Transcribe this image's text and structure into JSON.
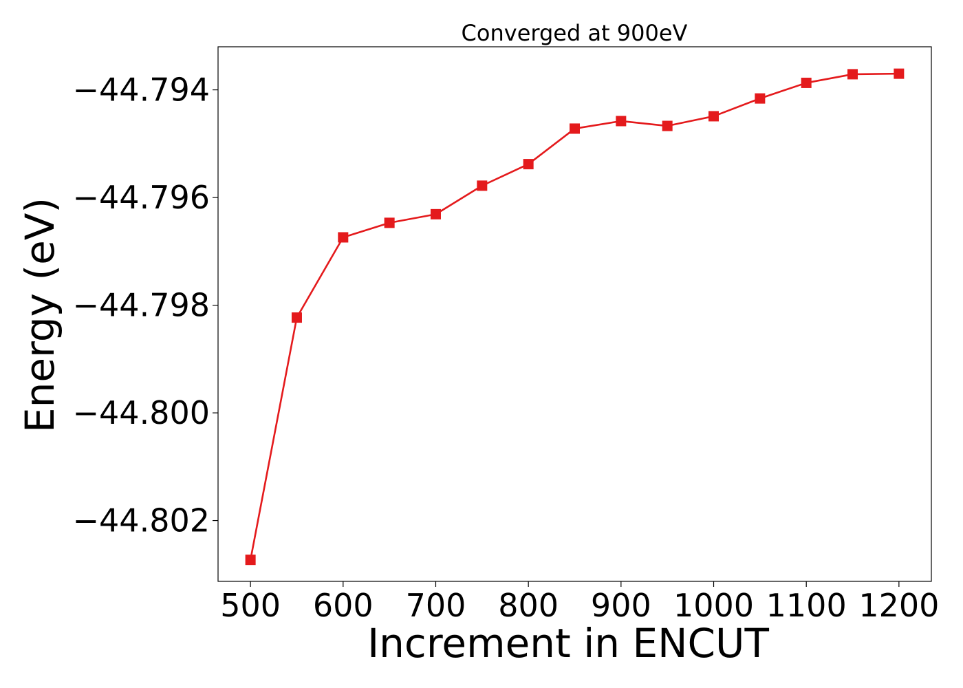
{
  "chart_data": {
    "type": "line",
    "title": "Converged at 900eV",
    "xlabel": "Increment in ENCUT",
    "ylabel": "Energy (eV)",
    "x": [
      500,
      550,
      600,
      650,
      700,
      750,
      800,
      850,
      900,
      950,
      1000,
      1050,
      1100,
      1150,
      1200
    ],
    "series": [
      {
        "color": "#e41a1c",
        "marker": "square",
        "values": [
          -44.80273,
          -44.79823,
          -44.79674,
          -44.79647,
          -44.79631,
          -44.79578,
          -44.79538,
          -44.79472,
          -44.79458,
          -44.79467,
          -44.79449,
          -44.79416,
          -44.79387,
          -44.79371,
          -44.7937
        ]
      }
    ],
    "xlim": [
      465,
      1235
    ],
    "ylim": [
      -44.80313,
      -44.7932
    ],
    "xticks": [
      500,
      600,
      700,
      800,
      900,
      1000,
      1100,
      1200
    ],
    "xtick_labels": [
      "500",
      "600",
      "700",
      "800",
      "900",
      "1000",
      "1100",
      "1200"
    ],
    "yticks": [
      -44.794,
      -44.796,
      -44.798,
      -44.8,
      -44.802
    ],
    "ytick_labels": [
      "−44.794",
      "−44.796",
      "−44.798",
      "−44.800",
      "−44.802"
    ],
    "grid": false,
    "legend": "none"
  }
}
